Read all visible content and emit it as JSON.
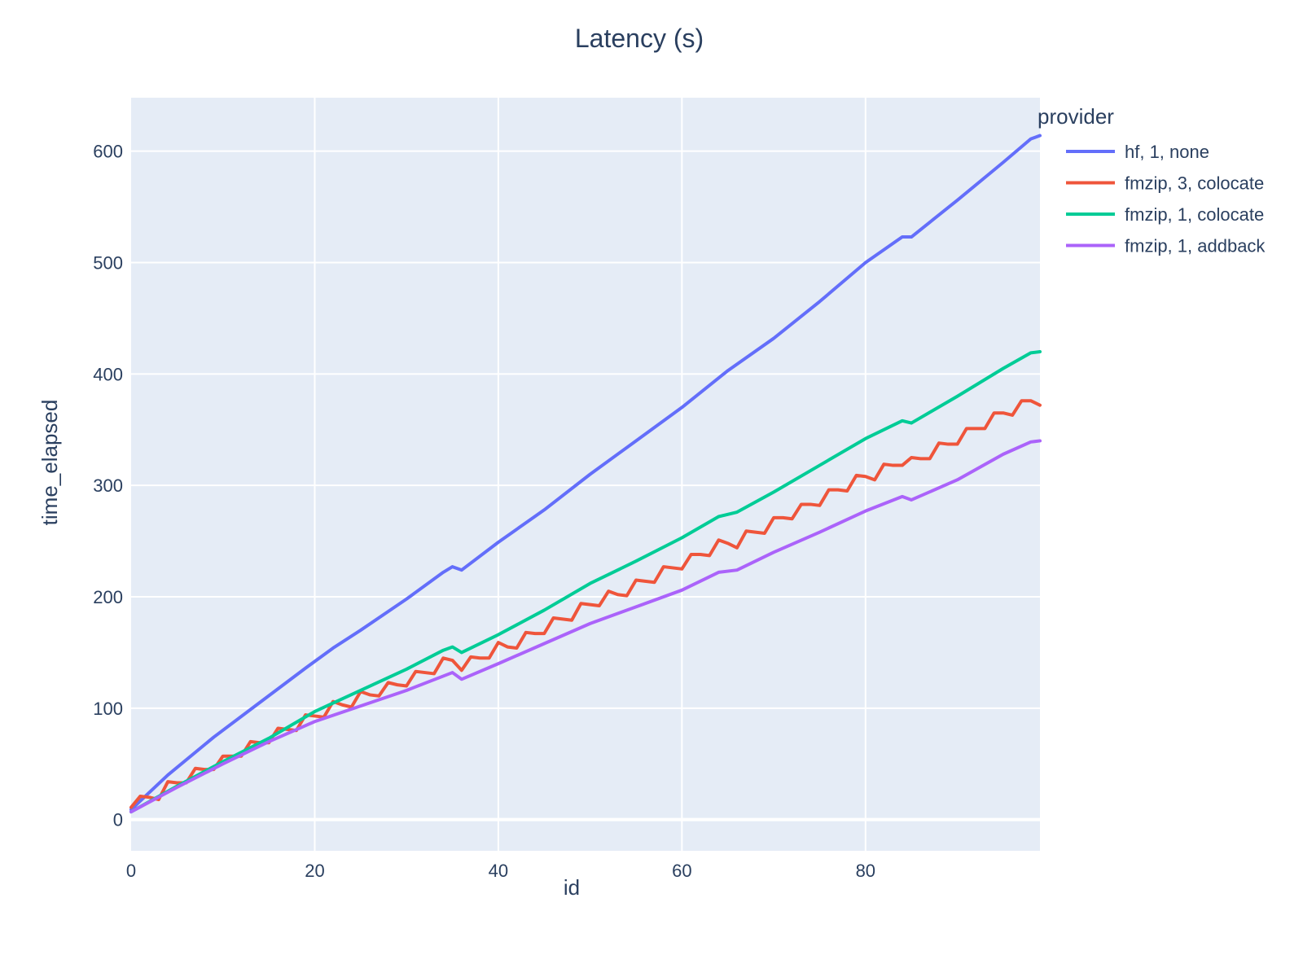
{
  "chart_data": {
    "type": "line",
    "title": "Latency (s)",
    "xlabel": "id",
    "ylabel": "time_elapsed",
    "xlim": [
      0,
      99
    ],
    "ylim": [
      -28,
      648
    ],
    "x_ticks": [
      0,
      20,
      40,
      60,
      80
    ],
    "y_ticks": [
      0,
      100,
      200,
      300,
      400,
      500,
      600
    ],
    "grid": true,
    "plot_bg": "#e5ecf6",
    "legend": {
      "title": "provider",
      "placement": "right"
    },
    "series": [
      {
        "name": "hf, 1, none",
        "color": "#636efa",
        "points": [
          [
            0,
            9
          ],
          [
            4,
            40
          ],
          [
            9,
            74
          ],
          [
            14,
            105
          ],
          [
            19,
            136
          ],
          [
            22,
            154
          ],
          [
            25,
            170
          ],
          [
            30,
            198
          ],
          [
            34,
            222
          ],
          [
            35,
            227
          ],
          [
            36,
            224
          ],
          [
            40,
            249
          ],
          [
            45,
            278
          ],
          [
            50,
            310
          ],
          [
            55,
            340
          ],
          [
            60,
            370
          ],
          [
            65,
            403
          ],
          [
            70,
            432
          ],
          [
            75,
            465
          ],
          [
            80,
            500
          ],
          [
            84,
            523
          ],
          [
            85,
            523
          ],
          [
            90,
            556
          ],
          [
            95,
            590
          ],
          [
            98,
            611
          ],
          [
            99,
            614
          ]
        ]
      },
      {
        "name": "fmzip, 3, colocate",
        "color": "#ef553b",
        "points": [
          [
            0,
            11
          ],
          [
            1,
            21
          ],
          [
            2,
            20
          ],
          [
            3,
            18
          ],
          [
            4,
            34
          ],
          [
            5,
            33
          ],
          [
            6,
            33
          ],
          [
            7,
            46
          ],
          [
            8,
            45
          ],
          [
            9,
            45
          ],
          [
            10,
            57
          ],
          [
            11,
            57
          ],
          [
            12,
            57
          ],
          [
            13,
            70
          ],
          [
            14,
            69
          ],
          [
            15,
            69
          ],
          [
            16,
            82
          ],
          [
            17,
            81
          ],
          [
            18,
            80
          ],
          [
            19,
            94
          ],
          [
            20,
            93
          ],
          [
            21,
            92
          ],
          [
            22,
            106
          ],
          [
            23,
            103
          ],
          [
            24,
            101
          ],
          [
            25,
            115
          ],
          [
            26,
            112
          ],
          [
            27,
            111
          ],
          [
            28,
            123
          ],
          [
            29,
            121
          ],
          [
            30,
            120
          ],
          [
            31,
            133
          ],
          [
            32,
            132
          ],
          [
            33,
            131
          ],
          [
            34,
            145
          ],
          [
            35,
            143
          ],
          [
            36,
            134
          ],
          [
            37,
            146
          ],
          [
            38,
            145
          ],
          [
            39,
            145
          ],
          [
            40,
            159
          ],
          [
            41,
            155
          ],
          [
            42,
            154
          ],
          [
            43,
            168
          ],
          [
            44,
            167
          ],
          [
            45,
            167
          ],
          [
            46,
            181
          ],
          [
            47,
            180
          ],
          [
            48,
            179
          ],
          [
            49,
            194
          ],
          [
            50,
            193
          ],
          [
            51,
            192
          ],
          [
            52,
            205
          ],
          [
            53,
            202
          ],
          [
            54,
            201
          ],
          [
            55,
            215
          ],
          [
            56,
            214
          ],
          [
            57,
            213
          ],
          [
            58,
            227
          ],
          [
            59,
            226
          ],
          [
            60,
            225
          ],
          [
            61,
            238
          ],
          [
            62,
            238
          ],
          [
            63,
            237
          ],
          [
            64,
            251
          ],
          [
            65,
            248
          ],
          [
            66,
            244
          ],
          [
            67,
            259
          ],
          [
            68,
            258
          ],
          [
            69,
            257
          ],
          [
            70,
            271
          ],
          [
            71,
            271
          ],
          [
            72,
            270
          ],
          [
            73,
            283
          ],
          [
            74,
            283
          ],
          [
            75,
            282
          ],
          [
            76,
            296
          ],
          [
            77,
            296
          ],
          [
            78,
            295
          ],
          [
            79,
            309
          ],
          [
            80,
            308
          ],
          [
            81,
            305
          ],
          [
            82,
            319
          ],
          [
            83,
            318
          ],
          [
            84,
            318
          ],
          [
            85,
            325
          ],
          [
            86,
            324
          ],
          [
            87,
            324
          ],
          [
            88,
            338
          ],
          [
            89,
            337
          ],
          [
            90,
            337
          ],
          [
            91,
            351
          ],
          [
            92,
            351
          ],
          [
            93,
            351
          ],
          [
            94,
            365
          ],
          [
            95,
            365
          ],
          [
            96,
            363
          ],
          [
            97,
            376
          ],
          [
            98,
            376
          ],
          [
            99,
            372
          ]
        ]
      },
      {
        "name": "fmzip, 1, colocate",
        "color": "#00cc96",
        "points": [
          [
            0,
            7
          ],
          [
            5,
            30
          ],
          [
            10,
            52
          ],
          [
            15,
            73
          ],
          [
            20,
            97
          ],
          [
            25,
            116
          ],
          [
            30,
            135
          ],
          [
            34,
            152
          ],
          [
            35,
            155
          ],
          [
            36,
            150
          ],
          [
            40,
            166
          ],
          [
            45,
            188
          ],
          [
            50,
            212
          ],
          [
            55,
            232
          ],
          [
            60,
            253
          ],
          [
            64,
            272
          ],
          [
            66,
            276
          ],
          [
            70,
            294
          ],
          [
            75,
            318
          ],
          [
            80,
            342
          ],
          [
            84,
            358
          ],
          [
            85,
            356
          ],
          [
            90,
            380
          ],
          [
            95,
            405
          ],
          [
            98,
            419
          ],
          [
            99,
            420
          ]
        ]
      },
      {
        "name": "fmzip, 1, addback",
        "color": "#ab63fa",
        "points": [
          [
            0,
            7
          ],
          [
            5,
            29
          ],
          [
            10,
            50
          ],
          [
            15,
            70
          ],
          [
            20,
            88
          ],
          [
            25,
            102
          ],
          [
            30,
            116
          ],
          [
            35,
            132
          ],
          [
            36,
            126
          ],
          [
            40,
            140
          ],
          [
            45,
            158
          ],
          [
            50,
            176
          ],
          [
            55,
            191
          ],
          [
            60,
            206
          ],
          [
            64,
            222
          ],
          [
            66,
            224
          ],
          [
            70,
            240
          ],
          [
            75,
            258
          ],
          [
            80,
            277
          ],
          [
            84,
            290
          ],
          [
            85,
            287
          ],
          [
            90,
            305
          ],
          [
            95,
            328
          ],
          [
            98,
            339
          ],
          [
            99,
            340
          ]
        ]
      }
    ]
  }
}
